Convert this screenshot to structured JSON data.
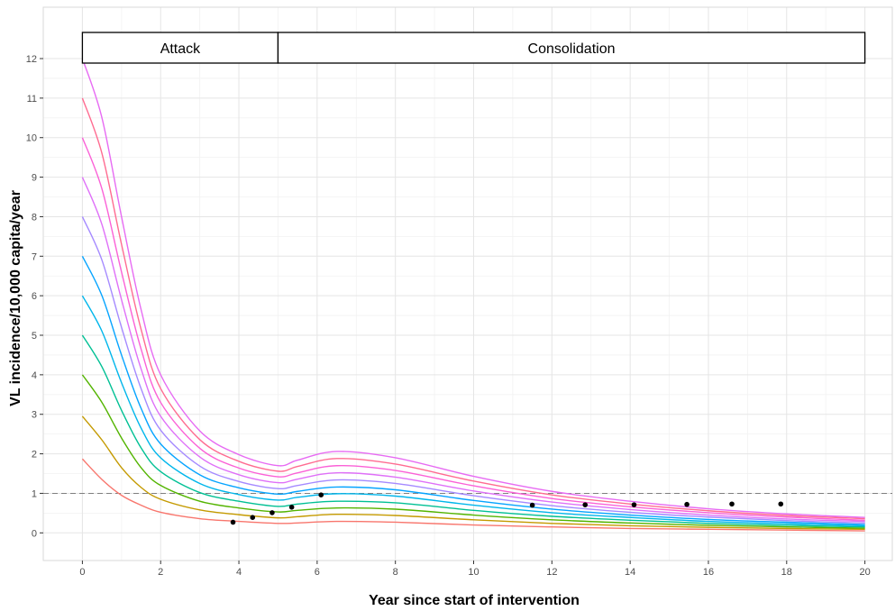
{
  "chart_data": {
    "type": "line",
    "title": "",
    "xlabel": "Year since start of intervention",
    "ylabel": "VL incidence/10,000 capita/year",
    "xlim": [
      -1,
      20.7
    ],
    "ylim": [
      -0.7,
      13.3
    ],
    "x_ticks": [
      0,
      2,
      4,
      6,
      8,
      10,
      12,
      14,
      16,
      18,
      20
    ],
    "y_ticks": [
      0,
      1,
      2,
      3,
      4,
      5,
      6,
      7,
      8,
      9,
      10,
      11,
      12
    ],
    "grid": true,
    "legend": "none",
    "phases": [
      {
        "label": "Attack",
        "start": 0,
        "end": 5
      },
      {
        "label": "Consolidation",
        "start": 5,
        "end": 20
      }
    ],
    "threshold": {
      "y": 1,
      "style": "dashed",
      "color": "#7f7f7f"
    },
    "series": [
      {
        "color": "#F8766D",
        "values": [
          [
            0,
            1.87
          ],
          [
            0.5,
            1.35
          ],
          [
            1,
            0.95
          ],
          [
            1.5,
            0.7
          ],
          [
            2,
            0.52
          ],
          [
            3,
            0.36
          ],
          [
            4,
            0.29
          ],
          [
            5,
            0.24
          ],
          [
            5.5,
            0.25
          ],
          [
            6.5,
            0.29
          ],
          [
            8,
            0.27
          ],
          [
            10,
            0.2
          ],
          [
            12,
            0.15
          ],
          [
            14,
            0.11
          ],
          [
            16,
            0.09
          ],
          [
            18,
            0.07
          ],
          [
            20,
            0.05
          ]
        ]
      },
      {
        "color": "#C49A00",
        "values": [
          [
            0,
            2.95
          ],
          [
            0.5,
            2.35
          ],
          [
            1,
            1.65
          ],
          [
            1.5,
            1.15
          ],
          [
            2,
            0.85
          ],
          [
            3,
            0.58
          ],
          [
            4,
            0.46
          ],
          [
            5,
            0.38
          ],
          [
            5.5,
            0.41
          ],
          [
            6.5,
            0.47
          ],
          [
            8,
            0.44
          ],
          [
            10,
            0.33
          ],
          [
            12,
            0.24
          ],
          [
            14,
            0.18
          ],
          [
            16,
            0.14
          ],
          [
            18,
            0.11
          ],
          [
            20,
            0.09
          ]
        ]
      },
      {
        "color": "#53B400",
        "values": [
          [
            0,
            4.0
          ],
          [
            0.5,
            3.3
          ],
          [
            1,
            2.4
          ],
          [
            1.5,
            1.65
          ],
          [
            2,
            1.2
          ],
          [
            3,
            0.8
          ],
          [
            4,
            0.63
          ],
          [
            5,
            0.53
          ],
          [
            5.5,
            0.57
          ],
          [
            6.5,
            0.63
          ],
          [
            8,
            0.6
          ],
          [
            10,
            0.45
          ],
          [
            12,
            0.33
          ],
          [
            14,
            0.25
          ],
          [
            16,
            0.19
          ],
          [
            18,
            0.15
          ],
          [
            20,
            0.12
          ]
        ]
      },
      {
        "color": "#00C094",
        "values": [
          [
            0,
            5.0
          ],
          [
            0.5,
            4.2
          ],
          [
            1,
            3.1
          ],
          [
            1.5,
            2.15
          ],
          [
            2,
            1.55
          ],
          [
            3,
            1.02
          ],
          [
            4,
            0.8
          ],
          [
            5,
            0.67
          ],
          [
            5.5,
            0.73
          ],
          [
            6.5,
            0.8
          ],
          [
            8,
            0.76
          ],
          [
            10,
            0.57
          ],
          [
            12,
            0.42
          ],
          [
            14,
            0.32
          ],
          [
            16,
            0.24
          ],
          [
            18,
            0.19
          ],
          [
            20,
            0.15
          ]
        ]
      },
      {
        "color": "#00B6EB",
        "values": [
          [
            0,
            6.0
          ],
          [
            0.5,
            5.1
          ],
          [
            1,
            3.8
          ],
          [
            1.5,
            2.65
          ],
          [
            2,
            1.9
          ],
          [
            3,
            1.25
          ],
          [
            4,
            0.97
          ],
          [
            5,
            0.83
          ],
          [
            5.5,
            0.9
          ],
          [
            6.5,
            0.99
          ],
          [
            8,
            0.93
          ],
          [
            10,
            0.7
          ],
          [
            12,
            0.51
          ],
          [
            14,
            0.39
          ],
          [
            16,
            0.29
          ],
          [
            18,
            0.23
          ],
          [
            20,
            0.18
          ]
        ]
      },
      {
        "color": "#06A4FF",
        "values": [
          [
            0,
            7.0
          ],
          [
            0.5,
            6.0
          ],
          [
            1,
            4.5
          ],
          [
            1.5,
            3.15
          ],
          [
            2,
            2.25
          ],
          [
            3,
            1.47
          ],
          [
            4,
            1.14
          ],
          [
            5,
            0.98
          ],
          [
            5.5,
            1.05
          ],
          [
            6.5,
            1.16
          ],
          [
            8,
            1.09
          ],
          [
            10,
            0.82
          ],
          [
            12,
            0.6
          ],
          [
            14,
            0.45
          ],
          [
            16,
            0.34
          ],
          [
            18,
            0.27
          ],
          [
            20,
            0.21
          ]
        ]
      },
      {
        "color": "#A58AFF",
        "values": [
          [
            0,
            8.0
          ],
          [
            0.5,
            6.9
          ],
          [
            1,
            5.2
          ],
          [
            1.5,
            3.65
          ],
          [
            2,
            2.6
          ],
          [
            3,
            1.69
          ],
          [
            4,
            1.3
          ],
          [
            5,
            1.12
          ],
          [
            5.5,
            1.2
          ],
          [
            6.5,
            1.34
          ],
          [
            8,
            1.25
          ],
          [
            10,
            0.94
          ],
          [
            12,
            0.69
          ],
          [
            14,
            0.52
          ],
          [
            16,
            0.4
          ],
          [
            18,
            0.31
          ],
          [
            20,
            0.25
          ]
        ]
      },
      {
        "color": "#DF70F8",
        "values": [
          [
            0,
            9.0
          ],
          [
            0.5,
            7.8
          ],
          [
            1,
            5.9
          ],
          [
            1.5,
            4.15
          ],
          [
            2,
            2.95
          ],
          [
            3,
            1.92
          ],
          [
            4,
            1.47
          ],
          [
            5,
            1.27
          ],
          [
            5.5,
            1.36
          ],
          [
            6.5,
            1.52
          ],
          [
            8,
            1.41
          ],
          [
            10,
            1.06
          ],
          [
            12,
            0.78
          ],
          [
            14,
            0.59
          ],
          [
            16,
            0.45
          ],
          [
            18,
            0.35
          ],
          [
            20,
            0.29
          ]
        ]
      },
      {
        "color": "#FB61D7",
        "values": [
          [
            0,
            10.0
          ],
          [
            0.5,
            8.7
          ],
          [
            1,
            6.6
          ],
          [
            1.5,
            4.65
          ],
          [
            2,
            3.3
          ],
          [
            3,
            2.14
          ],
          [
            4,
            1.64
          ],
          [
            5,
            1.42
          ],
          [
            5.5,
            1.52
          ],
          [
            6.5,
            1.7
          ],
          [
            8,
            1.58
          ],
          [
            10,
            1.19
          ],
          [
            12,
            0.87
          ],
          [
            14,
            0.66
          ],
          [
            16,
            0.51
          ],
          [
            18,
            0.4
          ],
          [
            20,
            0.32
          ]
        ]
      },
      {
        "color": "#FF6C91",
        "values": [
          [
            0,
            11.0
          ],
          [
            0.5,
            9.6
          ],
          [
            1,
            7.3
          ],
          [
            1.5,
            5.15
          ],
          [
            2,
            3.65
          ],
          [
            3,
            2.36
          ],
          [
            4,
            1.81
          ],
          [
            5,
            1.56
          ],
          [
            5.5,
            1.68
          ],
          [
            6.5,
            1.88
          ],
          [
            8,
            1.74
          ],
          [
            10,
            1.31
          ],
          [
            12,
            0.96
          ],
          [
            14,
            0.73
          ],
          [
            16,
            0.56
          ],
          [
            18,
            0.44
          ],
          [
            20,
            0.36
          ]
        ]
      },
      {
        "color": "#E76BF3",
        "values": [
          [
            0,
            12.0
          ],
          [
            0.5,
            10.5
          ],
          [
            1,
            8.0
          ],
          [
            1.5,
            5.65
          ],
          [
            2,
            4.0
          ],
          [
            3,
            2.58
          ],
          [
            4,
            1.98
          ],
          [
            5,
            1.7
          ],
          [
            5.5,
            1.84
          ],
          [
            6.5,
            2.06
          ],
          [
            8,
            1.9
          ],
          [
            10,
            1.43
          ],
          [
            12,
            1.05
          ],
          [
            14,
            0.8
          ],
          [
            16,
            0.61
          ],
          [
            18,
            0.48
          ],
          [
            20,
            0.39
          ]
        ]
      }
    ],
    "points": [
      {
        "x": 3.85,
        "y": 0.27
      },
      {
        "x": 4.35,
        "y": 0.39
      },
      {
        "x": 4.85,
        "y": 0.51
      },
      {
        "x": 5.35,
        "y": 0.65
      },
      {
        "x": 6.1,
        "y": 0.96
      },
      {
        "x": 11.5,
        "y": 0.7
      },
      {
        "x": 12.85,
        "y": 0.71
      },
      {
        "x": 14.1,
        "y": 0.71
      },
      {
        "x": 15.45,
        "y": 0.72
      },
      {
        "x": 16.6,
        "y": 0.73
      },
      {
        "x": 17.85,
        "y": 0.73
      }
    ]
  }
}
